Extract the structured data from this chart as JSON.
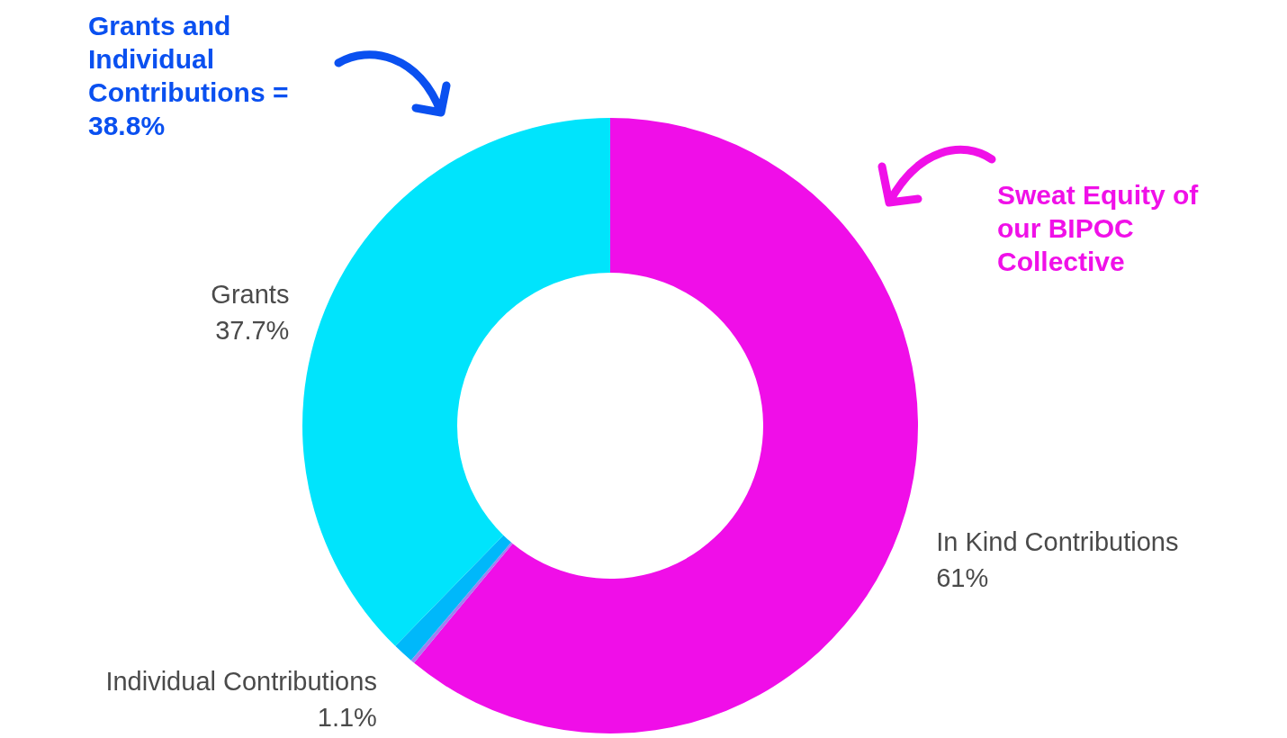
{
  "chart_data": {
    "type": "donut",
    "categories": [
      "In Kind Contributions",
      null,
      "Individual Contributions",
      "Grants"
    ],
    "values": [
      61,
      0.2,
      1.1,
      37.7
    ],
    "colors": [
      "#f00ee8",
      "#a080f0",
      "#00b8fa",
      "#00e4fc"
    ],
    "value_labels": [
      "61%",
      null,
      "1.1%",
      "37.7%"
    ],
    "annotations": [
      "Grants and Individual Contributions = 38.8%",
      "Sweat Equity of our BIPOC Collective"
    ]
  }
}
